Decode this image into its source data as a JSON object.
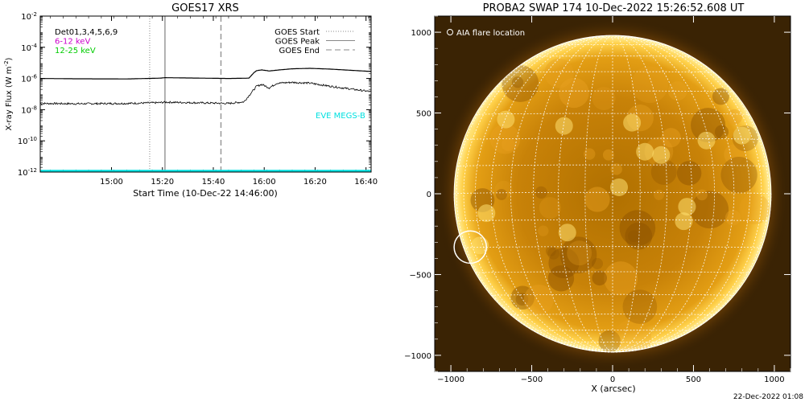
{
  "chart_data": [
    {
      "type": "line",
      "title": "GOES17 XRS",
      "xlabel": "Start Time (10-Dec-22 14:46:00)",
      "ylabel": "X-ray Flux (W m",
      "ylabel_sup": "-2",
      "ylabel_close": ")",
      "ylog": true,
      "ylim_exp": [
        -12,
        -2
      ],
      "yticks": [
        {
          "exp": -12,
          "base": "10",
          "sup": "-12"
        },
        {
          "exp": -10,
          "base": "10",
          "sup": "-10"
        },
        {
          "exp": -8,
          "base": "10",
          "sup": "-8"
        },
        {
          "exp": -6,
          "base": "10",
          "sup": "-6"
        },
        {
          "exp": -4,
          "base": "10",
          "sup": "-4"
        },
        {
          "exp": -2,
          "base": "10",
          "sup": "-2"
        }
      ],
      "xlim_min": [
        -14,
        116
      ],
      "xticks": [
        {
          "min": 14,
          "label": "15:00"
        },
        {
          "min": 34,
          "label": "15:20"
        },
        {
          "min": 54,
          "label": "15:40"
        },
        {
          "min": 74,
          "label": "16:00"
        },
        {
          "min": 94,
          "label": "16:20"
        },
        {
          "min": 114,
          "label": "16:40"
        }
      ],
      "legend_left": [
        {
          "label": "Det01,3,4,5,6,9",
          "color": "#000000"
        },
        {
          "label": "6-12 keV",
          "color": "#cc00cc"
        },
        {
          "label": "12-25 keV",
          "color": "#00cc00"
        }
      ],
      "legend_right": [
        {
          "label": "GOES Start",
          "style": "dotted"
        },
        {
          "label": "GOES Peak",
          "style": "solid"
        },
        {
          "label": "GOES End",
          "style": "dashed"
        }
      ],
      "eve_label": "EVE MEGS-B",
      "eve_color": "#00e0e0",
      "markers": {
        "start_min": 29,
        "peak_min": 35,
        "end_min": 57
      },
      "series": [
        {
          "id": "long",
          "t": [
            -14,
            0,
            20,
            33,
            35,
            45,
            60,
            68,
            70,
            71,
            73,
            76,
            80,
            85,
            92,
            100,
            116
          ],
          "exp": [
            -6.0,
            -6.02,
            -6.03,
            -5.98,
            -5.95,
            -5.97,
            -6.0,
            -5.98,
            -5.62,
            -5.5,
            -5.45,
            -5.52,
            -5.45,
            -5.38,
            -5.35,
            -5.4,
            -5.55
          ]
        },
        {
          "id": "short",
          "t": [
            -14,
            0,
            20,
            33,
            35,
            45,
            60,
            66,
            69,
            71,
            73,
            76,
            79,
            85,
            92,
            100,
            116
          ],
          "exp": [
            -7.6,
            -7.62,
            -7.6,
            -7.55,
            -7.52,
            -7.55,
            -7.6,
            -7.5,
            -6.9,
            -6.5,
            -6.38,
            -6.6,
            -6.3,
            -6.25,
            -6.3,
            -6.5,
            -6.85
          ]
        }
      ]
    },
    {
      "type": "image",
      "title": "PROBA2 SWAP 174 10-Dec-2022 15:26:52.608 UT",
      "xlabel": "X (arcsec)",
      "lim": [
        -1100,
        1100
      ],
      "ticks": [
        -1000,
        -500,
        0,
        500,
        1000
      ],
      "ticklabels": [
        "−1000",
        "−500",
        "0",
        "500",
        "1000"
      ],
      "legend": "AIA flare location",
      "flare": {
        "x": -880,
        "y": -330,
        "r": 100
      },
      "sun_radius": 980,
      "grid_step_deg": 10,
      "timestamp": "22-Dec-2022 01:08"
    }
  ]
}
